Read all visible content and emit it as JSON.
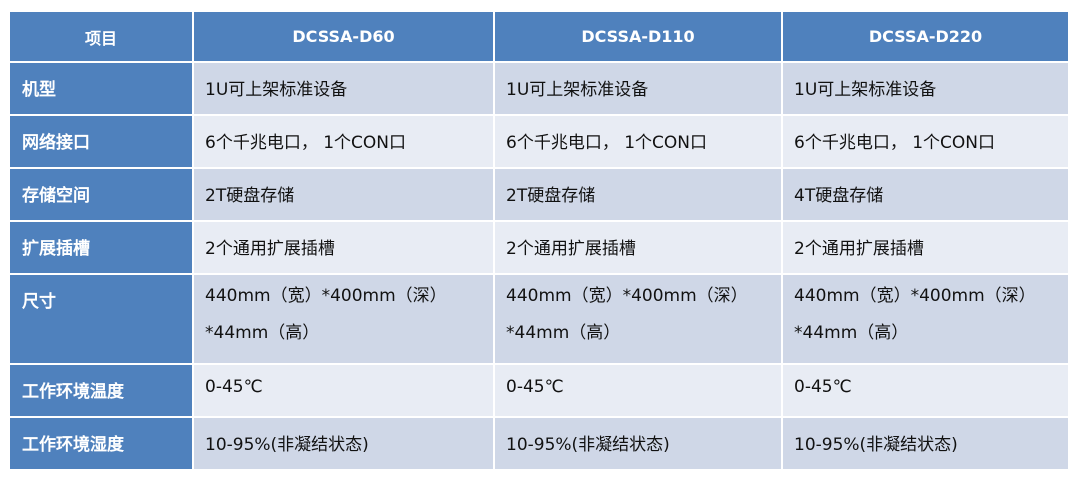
{
  "header": [
    "项目",
    "DCSSA-D60",
    "DCSSA-D110",
    "DCSSA-D220"
  ],
  "rows": [
    {
      "label": "机型",
      "values": [
        "1U可上架标准设备",
        "1U可上架标准设备",
        "1U可上架标准设备"
      ]
    },
    {
      "label": "网络接口",
      "values": [
        "6个千兆电口， 1个CON口",
        "6个千兆电口， 1个CON口",
        "6个千兆电口， 1个CON口"
      ]
    },
    {
      "label": "存储空间",
      "values": [
        "2T硬盘存储",
        "2T硬盘存储",
        "4T硬盘存储"
      ]
    },
    {
      "label": "扩展插槽",
      "values": [
        "2个通用扩展插槽",
        "2个通用扩展插槽",
        "2个通用扩展插槽"
      ]
    },
    {
      "label": "尺寸",
      "values": [
        "440mm（宽）*400mm（深）*44mm（高）",
        "440mm（宽）*400mm（深）*44mm（高）",
        "440mm（宽）*400mm（深）*44mm（高）"
      ]
    },
    {
      "label": "工作环境温度",
      "values": [
        "0-45℃",
        "0-45℃",
        "0-45℃"
      ]
    },
    {
      "label": "工作环境湿度",
      "values": [
        "10-95%(非凝结状态)",
        "10-95%(非凝结状态)",
        "10-95%(非凝结状态)"
      ]
    }
  ],
  "colors": {
    "header": "#4f81bd",
    "row_dark": "#cfd7e7",
    "row_light": "#e8ecf4"
  }
}
